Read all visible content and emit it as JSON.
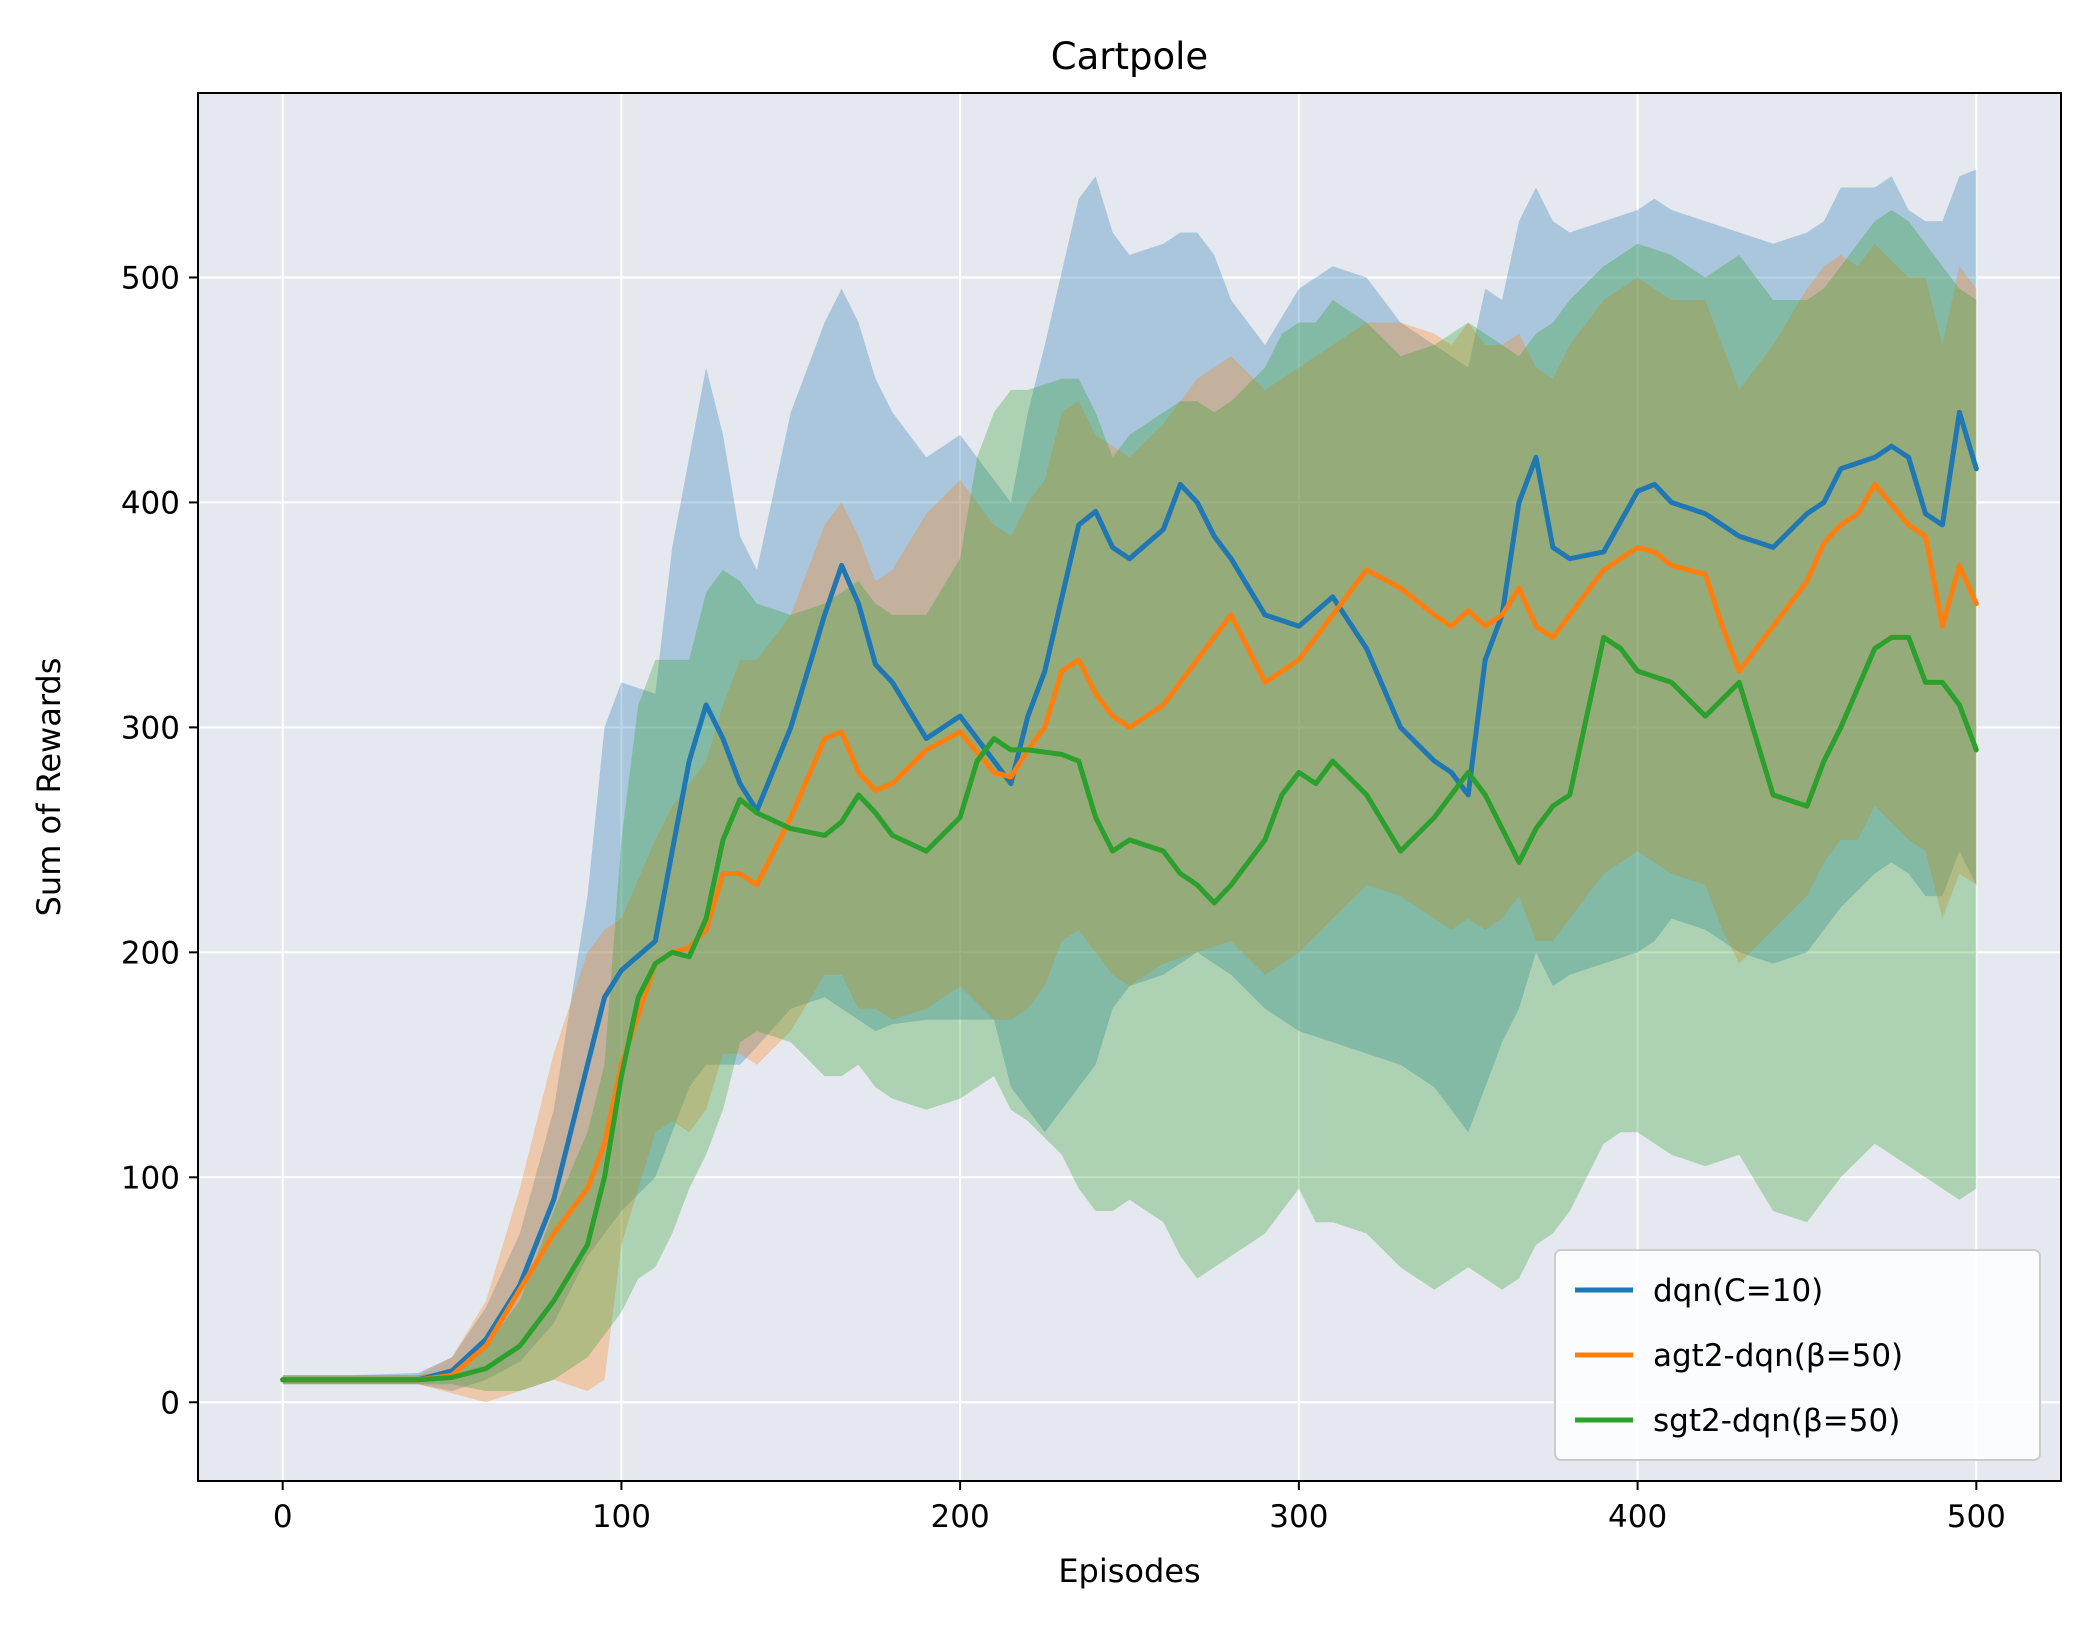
{
  "chart_data": {
    "type": "line",
    "title": "Cartpole",
    "xlabel": "Episodes",
    "ylabel": "Sum of Rewards",
    "xlim": [
      -25,
      525
    ],
    "ylim": [
      -35,
      582
    ],
    "xticks": [
      0,
      100,
      200,
      300,
      400,
      500
    ],
    "yticks": [
      0,
      100,
      200,
      300,
      400,
      500
    ],
    "grid": true,
    "legend_position": "lower-right",
    "series": [
      {
        "name": "dqn(C=10)",
        "color": "#1f77b4",
        "band_opacity": 0.3,
        "x": [
          0,
          20,
          40,
          50,
          60,
          70,
          80,
          90,
          95,
          100,
          110,
          115,
          120,
          125,
          130,
          135,
          140,
          150,
          160,
          165,
          170,
          175,
          180,
          190,
          200,
          210,
          215,
          220,
          225,
          235,
          240,
          245,
          250,
          260,
          265,
          270,
          275,
          280,
          290,
          300,
          310,
          320,
          330,
          340,
          345,
          350,
          355,
          360,
          365,
          370,
          375,
          380,
          390,
          400,
          405,
          410,
          420,
          430,
          440,
          450,
          455,
          460,
          470,
          475,
          480,
          485,
          490,
          495,
          500
        ],
        "values": [
          10,
          10,
          10,
          14,
          28,
          52,
          90,
          150,
          180,
          192,
          205,
          245,
          285,
          310,
          295,
          275,
          263,
          300,
          350,
          372,
          355,
          328,
          320,
          295,
          305,
          285,
          275,
          305,
          325,
          390,
          396,
          380,
          375,
          388,
          408,
          400,
          385,
          375,
          350,
          345,
          358,
          335,
          300,
          285,
          280,
          270,
          330,
          350,
          400,
          420,
          380,
          375,
          378,
          405,
          408,
          400,
          395,
          385,
          380,
          395,
          400,
          415,
          420,
          425,
          420,
          395,
          390,
          440,
          415
        ],
        "upper": [
          12,
          12,
          13,
          20,
          42,
          75,
          130,
          225,
          300,
          320,
          315,
          380,
          420,
          460,
          430,
          385,
          370,
          440,
          480,
          495,
          480,
          455,
          440,
          420,
          430,
          410,
          400,
          440,
          470,
          535,
          545,
          520,
          510,
          515,
          520,
          520,
          510,
          490,
          470,
          495,
          505,
          500,
          480,
          470,
          465,
          460,
          495,
          490,
          525,
          540,
          525,
          520,
          525,
          530,
          535,
          530,
          525,
          520,
          515,
          520,
          525,
          540,
          540,
          545,
          530,
          525,
          525,
          545,
          548
        ],
        "lower": [
          8,
          8,
          8,
          5,
          10,
          18,
          35,
          65,
          75,
          85,
          100,
          120,
          140,
          150,
          150,
          150,
          158,
          175,
          180,
          175,
          170,
          165,
          168,
          170,
          170,
          170,
          140,
          130,
          120,
          140,
          150,
          175,
          185,
          190,
          195,
          200,
          195,
          190,
          175,
          165,
          160,
          155,
          150,
          140,
          130,
          120,
          140,
          160,
          175,
          200,
          185,
          190,
          195,
          200,
          205,
          215,
          210,
          200,
          195,
          200,
          210,
          220,
          235,
          240,
          235,
          225,
          225,
          245,
          230
        ]
      },
      {
        "name": "agt2-dqn(β=50)",
        "color": "#ff7f0e",
        "band_opacity": 0.3,
        "x": [
          0,
          20,
          40,
          50,
          60,
          70,
          80,
          90,
          95,
          100,
          110,
          115,
          120,
          125,
          130,
          135,
          140,
          150,
          160,
          165,
          170,
          175,
          180,
          190,
          200,
          210,
          215,
          220,
          225,
          230,
          235,
          240,
          245,
          250,
          260,
          270,
          280,
          290,
          300,
          310,
          320,
          330,
          340,
          345,
          350,
          355,
          360,
          365,
          370,
          375,
          380,
          390,
          400,
          405,
          410,
          420,
          425,
          430,
          440,
          450,
          455,
          460,
          465,
          470,
          480,
          485,
          490,
          495,
          500
        ],
        "values": [
          10,
          10,
          10,
          12,
          25,
          50,
          75,
          95,
          115,
          150,
          195,
          200,
          202,
          210,
          235,
          235,
          230,
          260,
          295,
          298,
          280,
          272,
          275,
          290,
          298,
          280,
          278,
          290,
          300,
          325,
          330,
          315,
          305,
          300,
          310,
          330,
          350,
          320,
          330,
          350,
          370,
          362,
          350,
          345,
          352,
          345,
          350,
          362,
          345,
          340,
          350,
          370,
          380,
          378,
          372,
          368,
          345,
          325,
          345,
          365,
          382,
          390,
          395,
          408,
          390,
          385,
          345,
          372,
          355
        ],
        "upper": [
          12,
          12,
          12,
          20,
          45,
          95,
          155,
          200,
          210,
          215,
          250,
          265,
          275,
          285,
          310,
          330,
          330,
          350,
          390,
          400,
          385,
          365,
          370,
          395,
          410,
          390,
          385,
          400,
          410,
          440,
          445,
          430,
          425,
          420,
          435,
          455,
          465,
          450,
          460,
          470,
          480,
          480,
          475,
          470,
          480,
          470,
          470,
          475,
          460,
          455,
          470,
          490,
          500,
          495,
          490,
          490,
          470,
          450,
          470,
          495,
          505,
          510,
          505,
          515,
          500,
          500,
          470,
          505,
          495
        ],
        "lower": [
          8,
          8,
          8,
          4,
          0,
          5,
          10,
          5,
          10,
          70,
          120,
          125,
          120,
          130,
          155,
          155,
          150,
          165,
          190,
          190,
          175,
          175,
          170,
          175,
          185,
          170,
          170,
          175,
          185,
          205,
          210,
          200,
          190,
          185,
          195,
          200,
          205,
          190,
          200,
          215,
          230,
          225,
          215,
          210,
          215,
          210,
          215,
          225,
          205,
          205,
          215,
          235,
          245,
          240,
          235,
          230,
          210,
          195,
          210,
          225,
          240,
          250,
          250,
          265,
          250,
          245,
          215,
          235,
          230
        ]
      },
      {
        "name": "sgt2-dqn(β=50)",
        "color": "#2ca02c",
        "band_opacity": 0.3,
        "x": [
          0,
          20,
          40,
          50,
          60,
          70,
          80,
          90,
          95,
          100,
          105,
          110,
          115,
          120,
          125,
          130,
          135,
          140,
          150,
          160,
          165,
          170,
          175,
          180,
          190,
          200,
          205,
          210,
          215,
          220,
          230,
          235,
          240,
          245,
          250,
          260,
          265,
          270,
          275,
          280,
          290,
          295,
          300,
          305,
          310,
          320,
          330,
          340,
          345,
          350,
          355,
          360,
          365,
          370,
          375,
          380,
          390,
          395,
          400,
          410,
          420,
          430,
          440,
          450,
          455,
          460,
          470,
          475,
          480,
          485,
          490,
          495,
          500
        ],
        "values": [
          10,
          10,
          10,
          11,
          15,
          25,
          45,
          70,
          100,
          145,
          180,
          195,
          200,
          198,
          215,
          250,
          268,
          262,
          255,
          252,
          258,
          270,
          262,
          252,
          245,
          260,
          285,
          295,
          290,
          290,
          288,
          285,
          260,
          245,
          250,
          245,
          235,
          230,
          222,
          230,
          250,
          270,
          280,
          275,
          285,
          270,
          245,
          260,
          270,
          280,
          270,
          255,
          240,
          255,
          265,
          270,
          340,
          335,
          325,
          320,
          305,
          320,
          270,
          265,
          285,
          300,
          335,
          340,
          340,
          320,
          320,
          310,
          290
        ],
        "upper": [
          12,
          12,
          12,
          14,
          25,
          45,
          85,
          120,
          150,
          250,
          310,
          330,
          330,
          330,
          360,
          370,
          365,
          355,
          350,
          355,
          360,
          365,
          355,
          350,
          350,
          375,
          420,
          440,
          450,
          450,
          455,
          455,
          440,
          420,
          430,
          440,
          445,
          445,
          440,
          445,
          460,
          475,
          480,
          480,
          490,
          480,
          465,
          470,
          475,
          480,
          475,
          470,
          465,
          475,
          480,
          490,
          505,
          510,
          515,
          510,
          500,
          510,
          490,
          490,
          495,
          505,
          525,
          530,
          525,
          515,
          505,
          495,
          490
        ],
        "lower": [
          8,
          8,
          8,
          8,
          5,
          5,
          10,
          20,
          30,
          40,
          55,
          60,
          75,
          95,
          110,
          130,
          160,
          165,
          160,
          145,
          145,
          150,
          140,
          135,
          130,
          135,
          140,
          145,
          130,
          125,
          110,
          95,
          85,
          85,
          90,
          80,
          65,
          55,
          60,
          65,
          75,
          85,
          95,
          80,
          80,
          75,
          60,
          50,
          55,
          60,
          55,
          50,
          55,
          70,
          75,
          85,
          115,
          120,
          120,
          110,
          105,
          110,
          85,
          80,
          90,
          100,
          115,
          110,
          105,
          100,
          95,
          90,
          95
        ]
      }
    ]
  }
}
